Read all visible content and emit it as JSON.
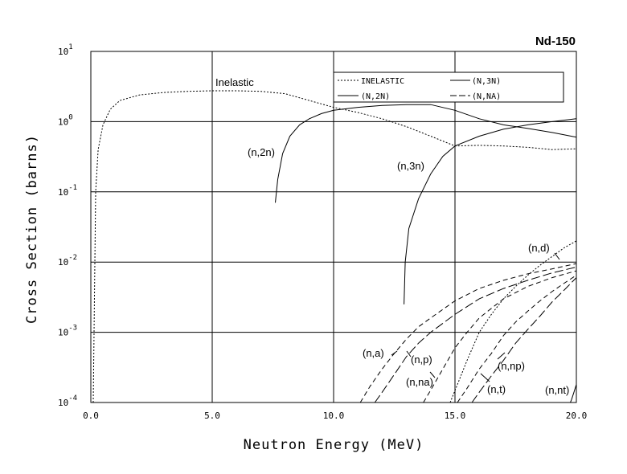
{
  "chart_data": {
    "type": "line",
    "title": "Nd-150",
    "xlabel": "Neutron Energy (MeV)",
    "ylabel": "Cross Section (barns)",
    "xlim": [
      0,
      20
    ],
    "ylim_log10": [
      -4,
      1
    ],
    "x_ticks": [
      "0.0",
      "5.0",
      "10.0",
      "15.0",
      "20.0"
    ],
    "y_ticks": [
      {
        "base": "10",
        "exp": "-4"
      },
      {
        "base": "10",
        "exp": "-3"
      },
      {
        "base": "10",
        "exp": "-2"
      },
      {
        "base": "10",
        "exp": "-1"
      },
      {
        "base": "10",
        "exp": "0"
      },
      {
        "base": "10",
        "exp": "1"
      }
    ],
    "grid": true,
    "legend": {
      "position": "top-right",
      "entries": [
        {
          "label": "INELASTIC",
          "style": "dotted"
        },
        {
          "label": "(N,3N)",
          "style": "solid"
        },
        {
          "label": "(N,2N)",
          "style": "solid"
        },
        {
          "label": "(N,NA)",
          "style": "dashed"
        }
      ]
    },
    "series": [
      {
        "name": "Inelastic",
        "style": "dotted",
        "x": [
          0.1,
          0.2,
          0.3,
          0.5,
          0.8,
          1.2,
          2,
          3,
          4,
          5,
          6,
          7,
          8,
          9,
          10,
          11,
          12,
          13,
          14,
          15,
          16,
          17,
          18,
          19,
          20
        ],
        "y": [
          0.0001,
          0.1,
          0.4,
          0.9,
          1.5,
          2.0,
          2.4,
          2.6,
          2.7,
          2.75,
          2.75,
          2.7,
          2.5,
          2.0,
          1.6,
          1.35,
          1.1,
          0.85,
          0.62,
          0.45,
          0.46,
          0.45,
          0.43,
          0.4,
          0.41
        ]
      },
      {
        "name": "(n,2n)",
        "style": "solid",
        "x": [
          7.6,
          7.7,
          7.9,
          8.2,
          8.6,
          9.0,
          9.5,
          10,
          11,
          12,
          13,
          14,
          15,
          16,
          17,
          18,
          19,
          20
        ],
        "y": [
          0.07,
          0.15,
          0.35,
          0.62,
          0.9,
          1.1,
          1.3,
          1.45,
          1.6,
          1.7,
          1.75,
          1.75,
          1.45,
          1.1,
          0.9,
          0.8,
          0.7,
          0.6
        ]
      },
      {
        "name": "(n,3n)",
        "style": "solid",
        "x": [
          12.9,
          12.95,
          13.1,
          13.5,
          14.0,
          14.5,
          15,
          16,
          17,
          18,
          19,
          20
        ],
        "y": [
          0.0025,
          0.01,
          0.03,
          0.08,
          0.18,
          0.32,
          0.45,
          0.62,
          0.78,
          0.9,
          1.0,
          1.1
        ]
      },
      {
        "name": "(n,a)",
        "style": "dashed",
        "x": [
          11.1,
          11.5,
          12,
          12.5,
          13,
          13.5,
          14,
          15,
          16,
          17,
          18,
          19,
          20
        ],
        "y": [
          0.0001,
          0.00017,
          0.0003,
          0.0005,
          0.0008,
          0.0012,
          0.0016,
          0.0028,
          0.0042,
          0.0055,
          0.0068,
          0.008,
          0.0095
        ]
      },
      {
        "name": "(n,p)",
        "style": "long-dash",
        "x": [
          11.7,
          12,
          12.5,
          13,
          13.5,
          14,
          15,
          16,
          17,
          18,
          19,
          20
        ],
        "y": [
          0.0001,
          0.00014,
          0.00025,
          0.00045,
          0.0007,
          0.001,
          0.0018,
          0.003,
          0.0042,
          0.0055,
          0.007,
          0.0085
        ]
      },
      {
        "name": "(n,na)",
        "style": "dashed",
        "x": [
          13.7,
          14,
          14.5,
          15,
          15.5,
          16,
          17,
          18,
          19,
          20
        ],
        "y": [
          0.0001,
          0.00015,
          0.0003,
          0.0006,
          0.001,
          0.0016,
          0.003,
          0.0045,
          0.006,
          0.0075
        ]
      },
      {
        "name": "(n,d)",
        "style": "dotted",
        "x": [
          14.8,
          15.1,
          15.5,
          16,
          16.5,
          17,
          17.5,
          18,
          18.5,
          19,
          19.5,
          20
        ],
        "y": [
          0.0001,
          0.00018,
          0.0004,
          0.001,
          0.0018,
          0.003,
          0.0045,
          0.0065,
          0.009,
          0.012,
          0.016,
          0.02
        ]
      },
      {
        "name": "(n,np)",
        "style": "dashed",
        "x": [
          15.1,
          15.5,
          16,
          16.5,
          17,
          17.5,
          18,
          18.5,
          19,
          19.5,
          20
        ],
        "y": [
          0.0001,
          0.00016,
          0.0003,
          0.0005,
          0.0009,
          0.0014,
          0.002,
          0.0028,
          0.0038,
          0.005,
          0.0065
        ]
      },
      {
        "name": "(n,t)",
        "style": "long-dash",
        "x": [
          15.7,
          16,
          16.5,
          17,
          17.5,
          18,
          18.5,
          19,
          19.5,
          20
        ],
        "y": [
          0.0001,
          0.00014,
          0.00024,
          0.0004,
          0.0007,
          0.0011,
          0.0017,
          0.0027,
          0.004,
          0.006
        ]
      },
      {
        "name": "(n,nt)",
        "style": "solid",
        "x": [
          19.75,
          19.8,
          19.9,
          20.0
        ],
        "y": [
          0.0001,
          0.00011,
          0.00014,
          0.00018
        ]
      }
    ],
    "annotations": [
      "Inelastic",
      "(n,2n)",
      "(n,3n)",
      "(n,d)",
      "(n,a)",
      "(n,p)",
      "(n,na)",
      "(n,np)",
      "(n,t)",
      "(n,nt)"
    ]
  }
}
